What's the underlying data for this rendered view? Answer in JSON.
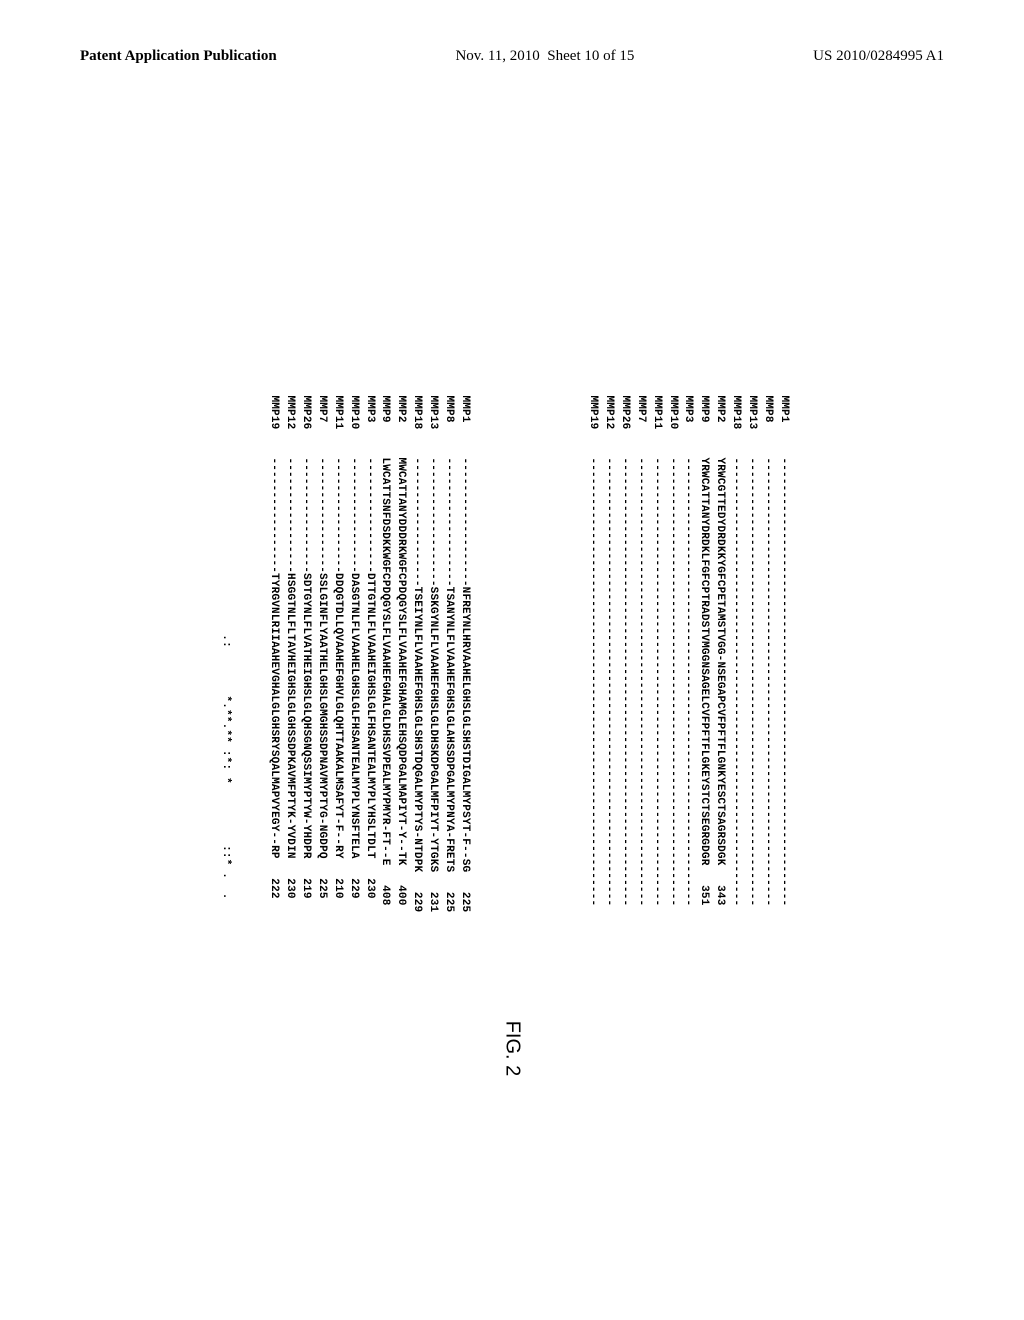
{
  "header": {
    "left": "Patent Application Publication",
    "date": "Nov. 11, 2010",
    "sheet": "Sheet 10 of 15",
    "pubno": "US 2010/0284995 A1"
  },
  "figure_label": "FIG. 2",
  "font": {
    "family": "Courier New",
    "size_pt": 11,
    "weight": "bold",
    "color": "#000000"
  },
  "layout": {
    "page_bg": "#ffffff",
    "rotation_deg": 90,
    "label_width_ch": 7,
    "seq_width_ch": 72
  },
  "block1": {
    "rows": [
      {
        "label": "MMP1",
        "seq": "------------------------------------------------------------------",
        "num": ""
      },
      {
        "label": "MMP8",
        "seq": "------------------------------------------------------------------",
        "num": ""
      },
      {
        "label": "MMP13",
        "seq": "------------------------------------------------------------------",
        "num": ""
      },
      {
        "label": "MMP18",
        "seq": "------------------------------------------------------------------",
        "num": ""
      },
      {
        "label": "MMP2",
        "seq": "YRWCGTTEDYDRDKKYGFCPETAMSTVGG-NSEGAPCVFPFTFLGNKYESCTSAGRSDGK",
        "num": "343"
      },
      {
        "label": "MMP9",
        "seq": "YRWCATTANYDRDKLFGFCPTRADSTVMGGNSAGELCVFPFTFLGKEYSTCTSEGRGDGR",
        "num": "351"
      },
      {
        "label": "MMP3",
        "seq": "------------------------------------------------------------------",
        "num": ""
      },
      {
        "label": "MMP10",
        "seq": "------------------------------------------------------------------",
        "num": ""
      },
      {
        "label": "MMP11",
        "seq": "------------------------------------------------------------------",
        "num": ""
      },
      {
        "label": "MMP7",
        "seq": "------------------------------------------------------------------",
        "num": ""
      },
      {
        "label": "MMP26",
        "seq": "------------------------------------------------------------------",
        "num": ""
      },
      {
        "label": "MMP12",
        "seq": "------------------------------------------------------------------",
        "num": ""
      },
      {
        "label": "MMP19",
        "seq": "------------------------------------------------------------------",
        "num": ""
      }
    ]
  },
  "block2": {
    "rows": [
      {
        "label": "MMP1",
        "seq": "-------------------NFREYNLHRVAAHELGHSLGLSHSTDIGALMYPSYT-F--SG",
        "num": "225"
      },
      {
        "label": "MMP8",
        "seq": "-------------------TSANYNLFLVAAHEFGHSLGLAHSSDPGALMYPNYA-FRETS",
        "num": "225"
      },
      {
        "label": "MMP13",
        "seq": "-------------------SSKGYNLFLVAAHEFGHSLGLDHSKDPGALMFPIYT-YTGKS",
        "num": "231"
      },
      {
        "label": "MMP18",
        "seq": "-------------------TSEIYNLFLVAAHEFGHSLGLSHSTDQGALMYPTYS-NTDPK",
        "num": "229"
      },
      {
        "label": "MMP2",
        "seq": "MWCATTANYDDDRKWGFCPDQGYSLFLVAAHEFGHAMGLEHSQDPGALMAPIYT-Y--TK",
        "num": "400"
      },
      {
        "label": "MMP9",
        "seq": "LWCATTSNFDSDKKWGFCPDQGYSLFLVAAHEFGHALGLDHSSVPEALMYPMYR-FT--E",
        "num": "408"
      },
      {
        "label": "MMP3",
        "seq": "-----------------DTTGTNLFLVAAHEIGHSLGLFHSANTEALMYPLYHSLTDLT",
        "num": "230"
      },
      {
        "label": "MMP10",
        "seq": "-----------------DASGTNLFLVAAHELGHSLGLFHSANTEALMYPLYNSFTELA",
        "num": "229"
      },
      {
        "label": "MMP11",
        "seq": "-----------------DDQGTDLLQVAAHEFGHVLGLQHTTAAKALMSAFYT-F--RY",
        "num": "210"
      },
      {
        "label": "MMP7",
        "seq": "-----------------SSLGINFLYAATHELGHSLGMGHSSDPNAVMYPTYG-NGDPQ",
        "num": "225"
      },
      {
        "label": "MMP26",
        "seq": "-----------------SDTGYNLFLVATHEIGHSLGLQHSGNQSSIMYPTYW-YHDPR",
        "num": "219"
      },
      {
        "label": "MMP12",
        "seq": "-----------------HSGGTNLFLTAVHEIGHSLGLGHSSDPKAVMFPTYK-YVDIN",
        "num": "230"
      },
      {
        "label": "MMP19",
        "seq": "-----------------TYRGVNLRIIAAHEVGHALGLGHSRYSQALMAPVYEGY--RP",
        "num": "222"
      }
    ],
    "consensus": "                          .:       *.**.** :*: *         ::* .  ."
  }
}
